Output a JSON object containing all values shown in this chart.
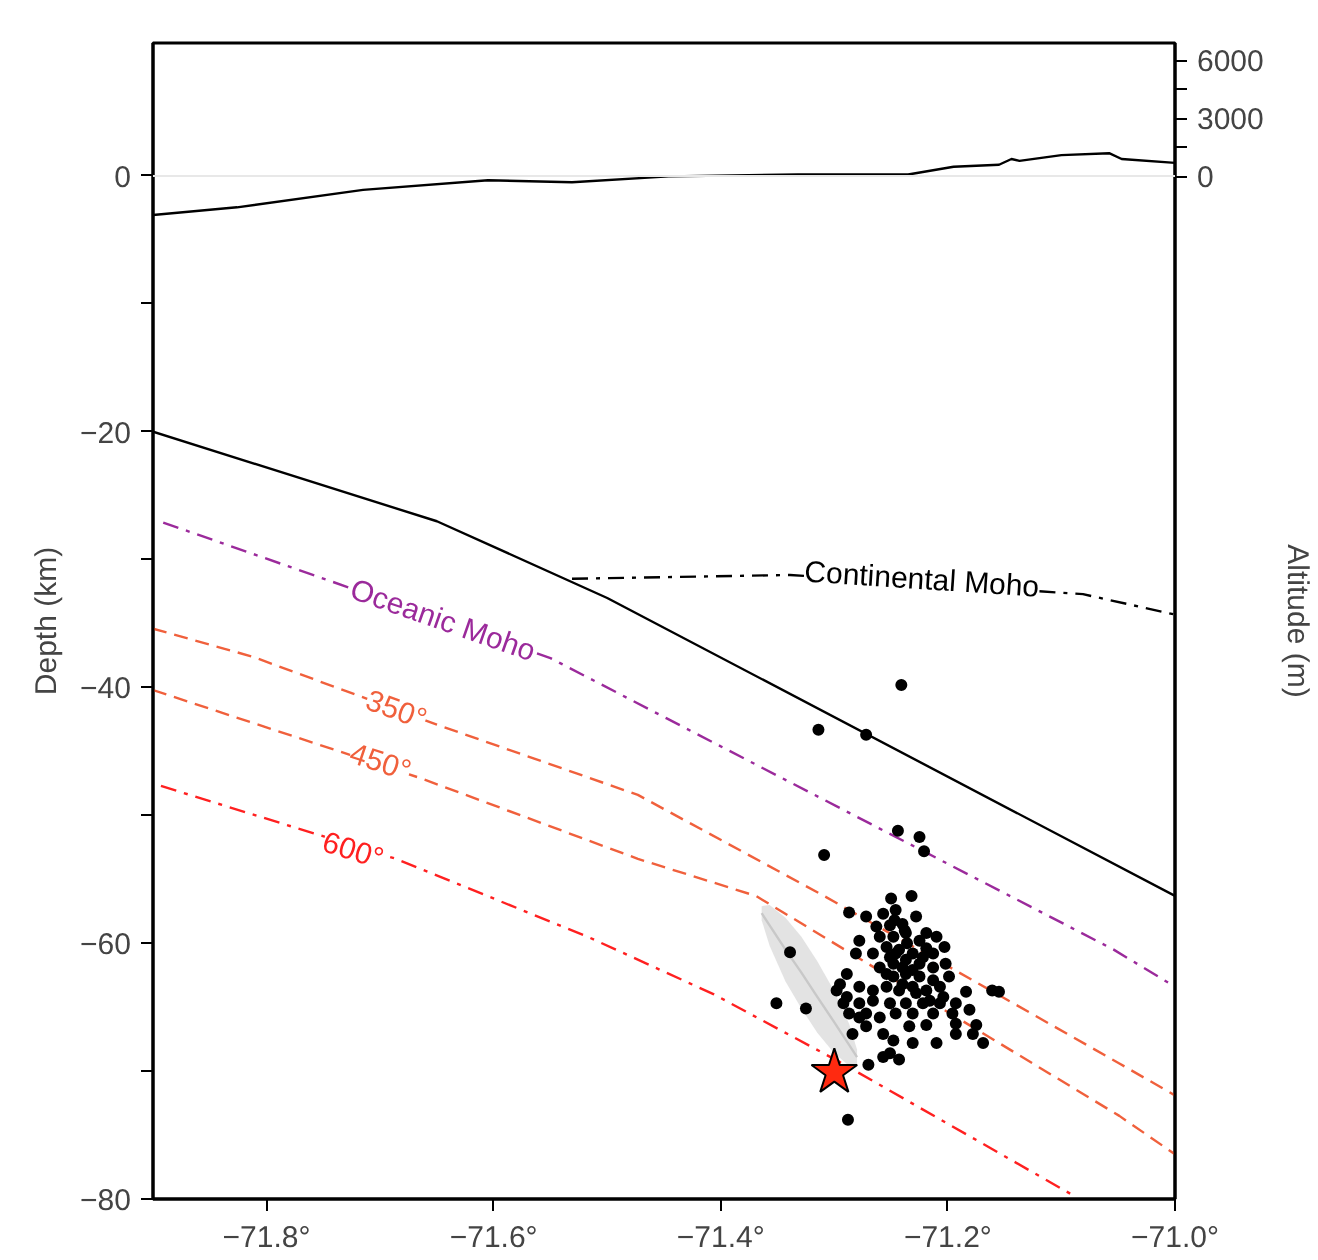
{
  "chart_data": {
    "type": "line",
    "xlim": [
      -71.9,
      -71.0
    ],
    "xticks": [
      {
        "value": -71.8,
        "label": "−71.8°"
      },
      {
        "value": -71.6,
        "label": "−71.6°"
      },
      {
        "value": -71.4,
        "label": "−71.4°"
      },
      {
        "value": -71.2,
        "label": "−71.2°"
      },
      {
        "value": -71.0,
        "label": "−71.0°"
      }
    ],
    "ylim": [
      -80,
      10.4
    ],
    "yticks": [
      {
        "value": -80,
        "label": "−80"
      },
      {
        "value": -70,
        "label": null
      },
      {
        "value": -60,
        "label": "−60"
      },
      {
        "value": -50,
        "label": null
      },
      {
        "value": -40,
        "label": "−40"
      },
      {
        "value": -30,
        "label": null
      },
      {
        "value": -20,
        "label": "−20"
      },
      {
        "value": -10,
        "label": null
      },
      0
    ],
    "y2lim": [
      -52900,
      6900
    ],
    "y2ticks": [
      0,
      {
        "value": 1500,
        "label": null
      },
      3000,
      {
        "value": 4500,
        "label": null
      },
      6000
    ],
    "ylabel": "Depth (km)",
    "y2label": "Altitude (m)",
    "grid": false,
    "ref_lines": [
      {
        "axis": "y",
        "value": 0,
        "color": "#e8e8e8"
      }
    ],
    "annotations": [
      {
        "text": "Oceanic Moho",
        "x": -71.645,
        "y": -34.8
      },
      {
        "text": "Continental Moho",
        "x": -71.223,
        "y": -31.6
      },
      {
        "text": "350°",
        "x": -71.686,
        "y": -41.8
      },
      {
        "text": "450°",
        "x": -71.7,
        "y": -45.9
      },
      {
        "text": "600°",
        "x": -71.724,
        "y": -52.8
      }
    ],
    "series": [
      {
        "type": "line",
        "axis": "y2",
        "color": "#000000",
        "line_style": "solid",
        "x": [
          -71.9,
          -71.826,
          -71.715,
          -71.605,
          -71.531,
          -71.446,
          -71.332,
          -71.235,
          -71.195,
          -71.155,
          -71.144,
          -71.137,
          -71.1,
          -71.058,
          -71.047,
          -71.0
        ],
        "values": [
          -2000,
          -1600,
          -700,
          -200,
          -300,
          0,
          100,
          100,
          500,
          600,
          900,
          800,
          1100,
          1200,
          900,
          700
        ]
      },
      {
        "color": "#000000",
        "line_style": "solid",
        "x": [
          -71.9,
          -71.65,
          -71.5,
          -71.0
        ],
        "values": [
          -20,
          -27,
          -33,
          -56.3
        ]
      },
      {
        "color": "#000000",
        "line_style": "dashdot",
        "x": [
          -71.531,
          -71.339,
          -71.081,
          -71.0
        ],
        "values": [
          -31.5,
          -31.2,
          -32.7,
          -34.3
        ]
      },
      {
        "color": "#9b2a9b",
        "line_style": "dashdot",
        "x": [
          -71.891,
          -71.55,
          -71.448,
          -71.054,
          -71.0
        ],
        "values": [
          -27.1,
          -37.7,
          -42.4,
          -60.5,
          -63.4
        ]
      },
      {
        "color": "#f0603c",
        "line_style": "dashed",
        "x": [
          -71.9,
          -71.812,
          -71.65,
          -71.473,
          -71.309,
          -71.049,
          -71.0
        ],
        "values": [
          -35.4,
          -37.6,
          -42.9,
          -48.4,
          -56.3,
          -69.4,
          -71.9
        ]
      },
      {
        "color": "#f0603c",
        "line_style": "dashed",
        "x": [
          -71.9,
          -71.664,
          -71.473,
          -71.369,
          -71.049,
          -71.0
        ],
        "values": [
          -40.2,
          -47.1,
          -53.4,
          -56.3,
          -73.5,
          -76.5
        ]
      },
      {
        "color": "#ff2020",
        "line_style": "dashdot",
        "x": [
          -71.893,
          -71.686,
          -71.517,
          -71.406,
          -71.295,
          -71.088
        ],
        "values": [
          -47.7,
          -53.4,
          -59.5,
          -64.0,
          -69.3,
          -79.8
        ]
      },
      {
        "color": "#c8c8c8",
        "line_style": "solid",
        "x": [
          -71.364,
          -71.357,
          -71.343,
          -71.329,
          -71.315,
          -71.301,
          -71.287,
          -71.28
        ],
        "values": [
          -57.65,
          -58.6,
          -60.5,
          -62.3,
          -64.2,
          -66.05,
          -67.95,
          -68.9
        ],
        "upper": [
          -57.1,
          -57.0,
          -58.0,
          -59.5,
          -61.4,
          -63.6,
          -66.3,
          -68.3
        ],
        "lower": [
          -58.2,
          -60.2,
          -63.0,
          -65.1,
          -67.0,
          -68.5,
          -69.6,
          -69.5
        ]
      },
      {
        "type": "scatter",
        "color": "#000000",
        "marker": "circle",
        "x": [
          -71.241,
          -71.314,
          -71.272,
          -71.244,
          -71.225,
          -71.221,
          -71.309,
          -71.288,
          -71.351,
          -71.339,
          -71.325,
          -71.25,
          -71.232,
          -71.287,
          -71.272,
          -71.257,
          -71.246,
          -71.228,
          -71.263,
          -71.251,
          -71.24,
          -71.219,
          -71.278,
          -71.26,
          -71.248,
          -71.237,
          -71.225,
          -71.21,
          -71.281,
          -71.266,
          -71.254,
          -71.243,
          -71.231,
          -71.219,
          -71.203,
          -71.26,
          -71.248,
          -71.237,
          -71.225,
          -71.213,
          -71.202,
          -71.248,
          -71.237,
          -71.225,
          -71.213,
          -71.199,
          -71.289,
          -71.278,
          -71.266,
          -71.254,
          -71.243,
          -71.231,
          -71.219,
          -71.207,
          -71.184,
          -71.161,
          -71.155,
          -71.289,
          -71.278,
          -71.266,
          -71.251,
          -71.237,
          -71.222,
          -71.207,
          -71.193,
          -71.272,
          -71.26,
          -71.246,
          -71.231,
          -71.213,
          -71.196,
          -71.181,
          -71.272,
          -71.257,
          -71.248,
          -71.234,
          -71.219,
          -71.193,
          -71.175,
          -71.178,
          -71.251,
          -71.243,
          -71.231,
          -71.21,
          -71.169,
          -71.257,
          -71.27,
          -71.295,
          -71.298,
          -71.287,
          -71.284,
          -71.278,
          -71.292,
          -71.246,
          -71.236,
          -71.251,
          -71.24,
          -71.231,
          -71.222,
          -71.213,
          -71.228,
          -71.24,
          -71.216,
          -71.204,
          -71.193,
          -71.247,
          -71.238,
          -71.254
        ],
        "values": [
          -39.8,
          -43.3,
          -43.7,
          -51.2,
          -51.7,
          -52.8,
          -53.1,
          -73.8,
          -64.7,
          -60.7,
          -65.1,
          -56.5,
          -56.3,
          -57.6,
          -57.9,
          -57.7,
          -57.4,
          -57.9,
          -58.7,
          -58.6,
          -58.5,
          -59.2,
          -59.8,
          -59.5,
          -59.5,
          -59.2,
          -59.8,
          -59.5,
          -60.8,
          -60.8,
          -60.3,
          -60.5,
          -60.8,
          -60.4,
          -60.3,
          -61.9,
          -61.6,
          -61.3,
          -61.6,
          -61.9,
          -61.6,
          -62.6,
          -62.4,
          -62.6,
          -62.9,
          -62.6,
          -62.4,
          -63.4,
          -63.7,
          -63.4,
          -63.7,
          -63.4,
          -63.7,
          -63.4,
          -63.8,
          -63.7,
          -63.8,
          -64.2,
          -64.7,
          -64.5,
          -64.7,
          -64.7,
          -64.7,
          -64.7,
          -64.7,
          -65.5,
          -65.8,
          -65.5,
          -65.5,
          -65.5,
          -65.5,
          -65.2,
          -66.5,
          -67.1,
          -67.6,
          -66.5,
          -66.4,
          -66.3,
          -66.4,
          -67.1,
          -68.6,
          -69.1,
          -67.8,
          -67.8,
          -67.8,
          -68.9,
          -69.5,
          -63.2,
          -63.7,
          -65.5,
          -67.1,
          -65.8,
          -64.7,
          -60.8,
          -60.0,
          -61.1,
          -61.9,
          -62.1,
          -61.1,
          -60.8,
          -63.9,
          -63.2,
          -64.5,
          -64.2,
          -67.1,
          -58.2,
          -59.0,
          -62.4
        ]
      },
      {
        "type": "scatter",
        "color": "#ff2a10",
        "marker": "star",
        "x": [
          -71.3
        ],
        "values": [
          -70.1
        ]
      }
    ]
  }
}
